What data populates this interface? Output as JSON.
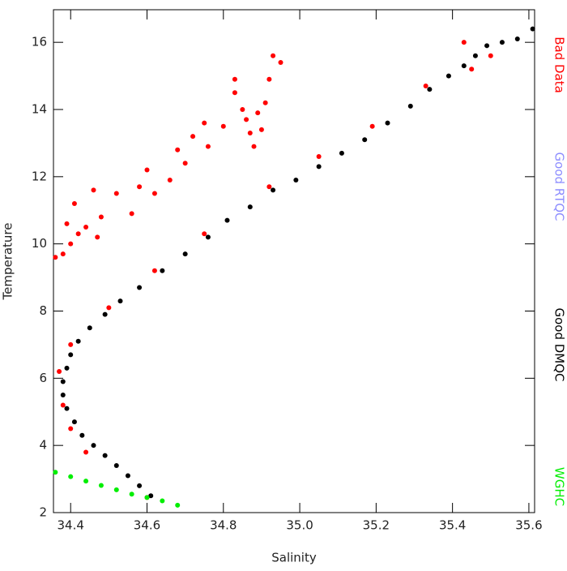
{
  "chart_data": {
    "type": "scatter",
    "x_label": "Salinity",
    "y_label": "Temperature",
    "xlim": [
      34.355,
      35.615
    ],
    "ylim": [
      2,
      16.97
    ],
    "xticks": [
      34.4,
      34.6,
      34.8,
      {
        "value": 35.0,
        "label": "35.0"
      },
      35.2,
      35.4,
      35.6
    ],
    "yticks": [
      2,
      4,
      6,
      8,
      10,
      12,
      14,
      16
    ],
    "series": [
      {
        "name": "Bad Data",
        "color": "#ff0000",
        "x": [
          34.6,
          34.44,
          34.4,
          34.38,
          34.37,
          34.4,
          34.5,
          34.62,
          34.75,
          34.92,
          35.05,
          35.19,
          35.33,
          35.45,
          35.5,
          35.43,
          34.36,
          34.38,
          34.4,
          34.42,
          34.44,
          34.47,
          34.39,
          34.41,
          34.46,
          34.48,
          34.52,
          34.56,
          34.58,
          34.6,
          34.62,
          34.66,
          34.68,
          34.72,
          34.75,
          34.7,
          34.76,
          34.8,
          34.83,
          34.85,
          34.87,
          34.86,
          34.89,
          34.91,
          34.88,
          34.92,
          34.93,
          34.95,
          34.83,
          34.9
        ],
        "y": [
          2.45,
          3.8,
          4.5,
          5.2,
          6.2,
          7.0,
          8.1,
          9.2,
          10.3,
          11.7,
          12.6,
          13.5,
          14.7,
          15.2,
          15.6,
          16.0,
          9.6,
          9.7,
          10.0,
          10.3,
          10.5,
          10.2,
          10.6,
          11.2,
          11.6,
          10.8,
          11.5,
          10.9,
          11.7,
          12.2,
          11.5,
          11.9,
          12.8,
          13.2,
          13.6,
          12.4,
          12.9,
          13.5,
          14.5,
          14.0,
          13.3,
          13.7,
          13.9,
          14.2,
          12.9,
          14.9,
          15.6,
          15.4,
          14.9,
          13.4
        ]
      },
      {
        "name": "Good RTQC",
        "color": "#8c8cff",
        "x": [],
        "y": []
      },
      {
        "name": "Good DMQC",
        "color": "#000000",
        "x": [
          34.61,
          34.58,
          34.55,
          34.52,
          34.49,
          34.46,
          34.43,
          34.41,
          34.39,
          34.38,
          34.38,
          34.39,
          34.4,
          34.42,
          34.45,
          34.49,
          34.53,
          34.58,
          34.64,
          34.7,
          34.76,
          34.81,
          34.87,
          34.93,
          34.99,
          35.05,
          35.11,
          35.17,
          35.23,
          35.29,
          35.34,
          35.39,
          35.43,
          35.46,
          35.49,
          35.53,
          35.57,
          35.61
        ],
        "y": [
          2.5,
          2.8,
          3.1,
          3.4,
          3.7,
          4.0,
          4.3,
          4.7,
          5.1,
          5.5,
          5.9,
          6.3,
          6.7,
          7.1,
          7.5,
          7.9,
          8.3,
          8.7,
          9.2,
          9.7,
          10.2,
          10.7,
          11.1,
          11.6,
          11.9,
          12.3,
          12.7,
          13.1,
          13.6,
          14.1,
          14.6,
          15.0,
          15.3,
          15.6,
          15.9,
          16.0,
          16.1,
          16.4
        ]
      },
      {
        "name": "WGHC",
        "color": "#00ee00",
        "x": [
          34.36,
          34.4,
          34.44,
          34.48,
          34.52,
          34.56,
          34.6,
          34.64,
          34.68
        ],
        "y": [
          3.2,
          3.07,
          2.94,
          2.81,
          2.68,
          2.55,
          2.45,
          2.35,
          2.22
        ]
      }
    ]
  }
}
